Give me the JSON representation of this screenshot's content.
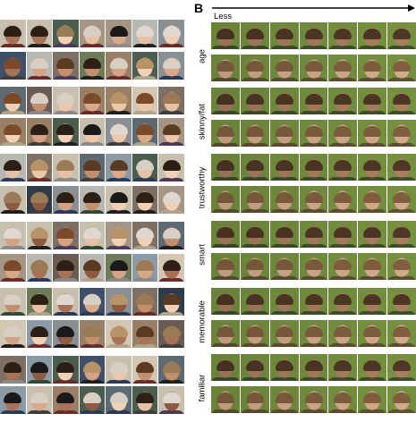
{
  "panel_b": {
    "letter": "B",
    "direction_label": "Less",
    "traits": [
      "age",
      "skinny/fat",
      "trustworthy",
      "smart",
      "memorable",
      "familiar"
    ]
  },
  "colors": {
    "face_male_strip": "#a2775a",
    "face_female_strip": "#caa286",
    "strip_background": "#6f8a3c"
  }
}
